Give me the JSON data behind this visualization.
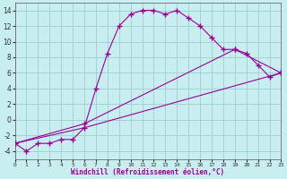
{
  "xlabel": "Windchill (Refroidissement éolien,°C)",
  "bg_color": "#c8eef0",
  "grid_color": "#9fcdd0",
  "line_color": "#990099",
  "xlim": [
    0,
    23
  ],
  "ylim": [
    -5,
    15
  ],
  "xticks": [
    0,
    1,
    2,
    3,
    4,
    5,
    6,
    7,
    8,
    9,
    10,
    11,
    12,
    13,
    14,
    15,
    16,
    17,
    18,
    19,
    20,
    21,
    22,
    23
  ],
  "yticks": [
    -4,
    -2,
    0,
    2,
    4,
    6,
    8,
    10,
    12,
    14
  ],
  "line1_x": [
    0,
    1,
    2,
    3,
    4,
    5,
    6,
    7,
    8,
    9,
    10,
    11,
    12,
    13,
    14,
    15,
    16,
    17,
    18,
    19,
    20,
    21,
    22,
    23
  ],
  "line1_y": [
    -3,
    -4,
    -3,
    -3,
    -2.5,
    -2.5,
    -1,
    4,
    8.5,
    12,
    13.5,
    14,
    14,
    13.5,
    14,
    13,
    12,
    10.5,
    9,
    9,
    8.5,
    7,
    5.5,
    6
  ],
  "line2_x": [
    0,
    6,
    19,
    23
  ],
  "line2_y": [
    -3,
    -0.5,
    9,
    6
  ],
  "line3_x": [
    0,
    6,
    23
  ],
  "line3_y": [
    -3,
    -1,
    6
  ]
}
